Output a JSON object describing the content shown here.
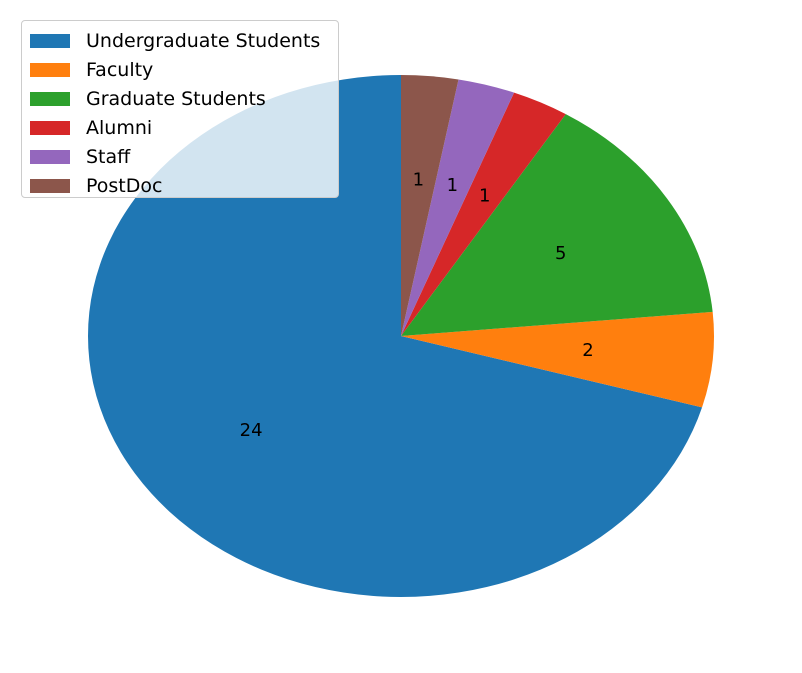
{
  "chart_data": {
    "type": "pie",
    "categories": [
      "Undergraduate Students",
      "Faculty",
      "Graduate Students",
      "Alumni",
      "Staff",
      "PostDoc"
    ],
    "values": [
      24,
      2,
      5,
      1,
      1,
      1
    ],
    "colors": [
      "#1f77b4",
      "#ff7f0e",
      "#2ca02c",
      "#d62728",
      "#9467bd",
      "#8c564b"
    ],
    "slice_labels": [
      "24",
      "2",
      "5",
      "1",
      "1",
      "1"
    ],
    "start_angle_deg": 90,
    "direction": "counterclockwise",
    "legend_position": "upper-left",
    "title": ""
  }
}
